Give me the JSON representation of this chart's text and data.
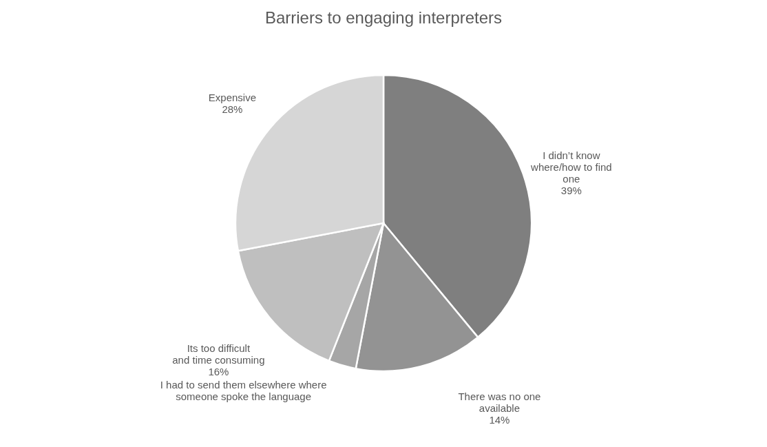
{
  "chart_data": {
    "type": "pie",
    "title": "Barriers to engaging interpreters",
    "categories": [
      "I didn’t know where/how to find one",
      "There was no one available",
      "I had to send them elsewhere where someone spoke the language",
      "Its too difficult and time consuming",
      "Expensive"
    ],
    "values": [
      39,
      14,
      3,
      16,
      28
    ],
    "value_labels": [
      "39%",
      "14%",
      null,
      "16%",
      "28%"
    ],
    "colors": [
      "#7f7f7f",
      "#939393",
      "#a6a6a6",
      "#bfbfbf",
      "#d6d6d6"
    ]
  }
}
